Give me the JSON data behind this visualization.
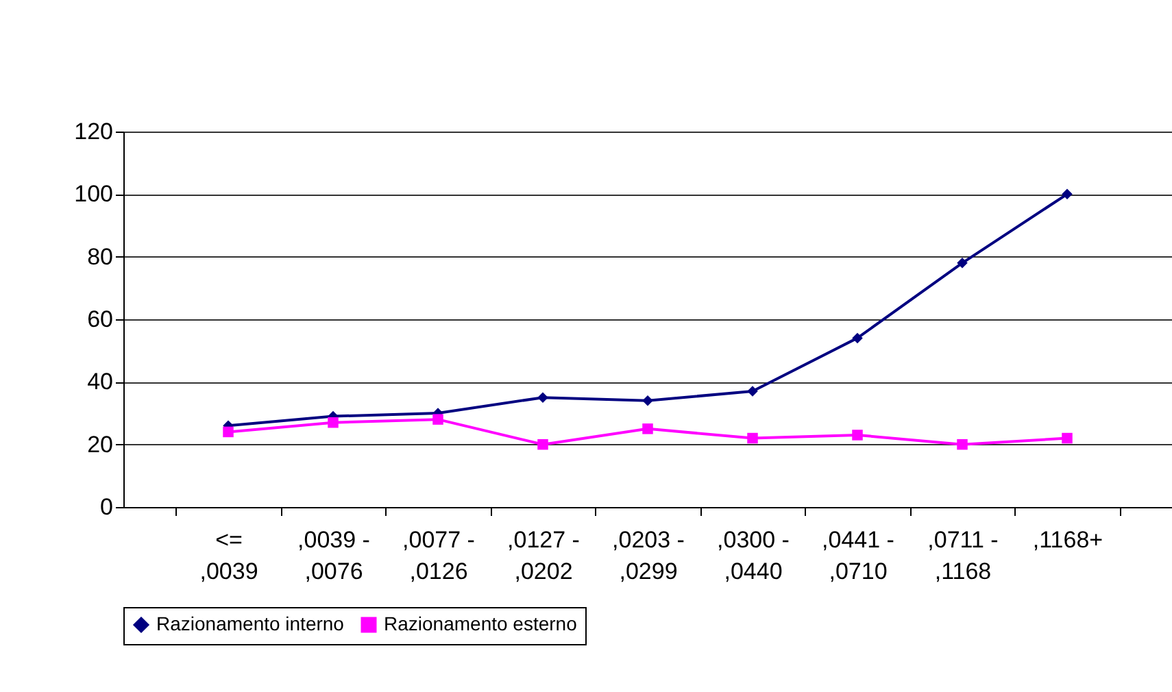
{
  "chart_data": {
    "type": "line",
    "categories": [
      "<= ,0039",
      ",0039 - ,0076",
      ",0077 - ,0126",
      ",0127 - ,0202",
      ",0203 - ,0299",
      ",0300 - ,0440",
      ",0441 - ,0710",
      ",0711 - ,1168",
      ",1168+"
    ],
    "series": [
      {
        "name": "Razionamento interno",
        "color": "#000080",
        "marker": "diamond",
        "values": [
          26,
          29,
          30,
          35,
          34,
          37,
          54,
          78,
          100
        ]
      },
      {
        "name": "Razionamento esterno",
        "color": "#ff00ff",
        "marker": "square",
        "values": [
          24,
          27,
          28,
          20,
          25,
          22,
          23,
          20,
          22
        ]
      }
    ],
    "ylim": [
      0,
      120
    ],
    "yticks": [
      0,
      20,
      40,
      60,
      80,
      100,
      120
    ],
    "grid": "y",
    "legend": "bottom",
    "line_style": "solid"
  }
}
